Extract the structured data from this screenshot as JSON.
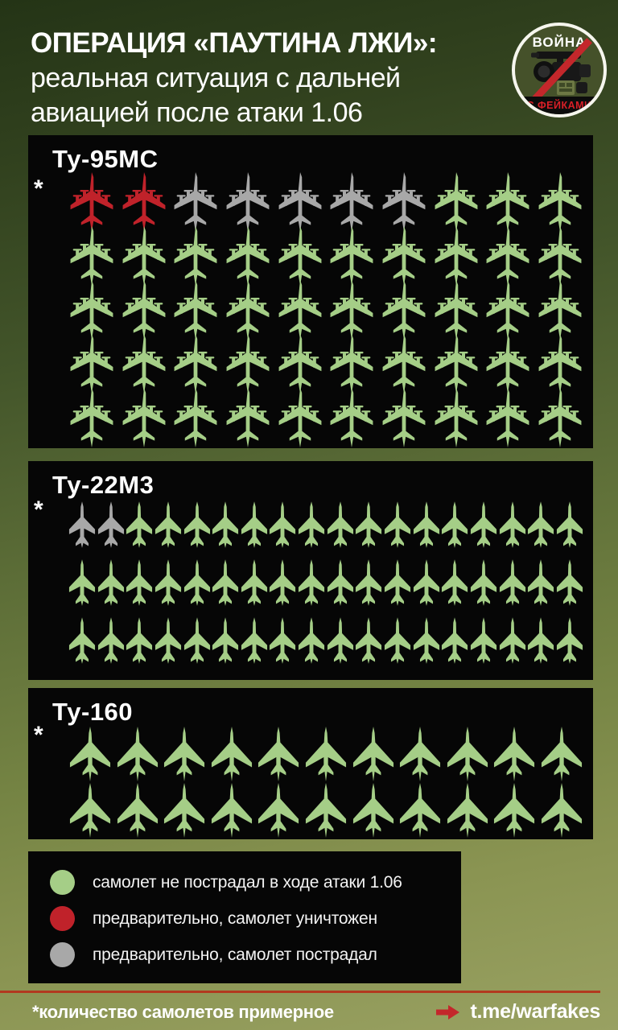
{
  "header": {
    "title_line1": "ОПЕРАЦИЯ «ПАУТИНА ЛЖИ»:",
    "title_line2": "реальная ситуация с дальней",
    "title_line3": "авиацией после атаки 1.06",
    "logo": {
      "top": "ВОЙНА",
      "bottom": "С ФЕЙКАМИ",
      "icon": "video-camera-crossed-icon"
    }
  },
  "panels": {
    "asterisk": "*"
  },
  "colors": {
    "ok": "#a5ce87",
    "destroyed": "#c0222a",
    "damaged": "#a8a8a8",
    "accent_red": "#c3272b",
    "divider_red": "#b2391f",
    "panel_black": "#060606"
  },
  "chart_data": [
    {
      "type": "pictogram",
      "title": "Ту-95МС",
      "icon": "tu95-bomber-icon",
      "per_row": 10,
      "rows": 5,
      "total": 50,
      "sequence": [
        [
          "destroyed",
          2
        ],
        [
          "damaged",
          5
        ],
        [
          "ok",
          43
        ]
      ],
      "counts": {
        "destroyed": 2,
        "damaged": 5,
        "ok": 43
      }
    },
    {
      "type": "pictogram",
      "title": "Ту-22М3",
      "icon": "tu22m3-bomber-icon",
      "per_row": 18,
      "rows": 3,
      "total": 54,
      "sequence": [
        [
          "damaged",
          2
        ],
        [
          "ok",
          52
        ]
      ],
      "counts": {
        "destroyed": 0,
        "damaged": 2,
        "ok": 52
      }
    },
    {
      "type": "pictogram",
      "title": "Ту-160",
      "icon": "tu160-bomber-icon",
      "per_row": 11,
      "rows": 2,
      "total": 22,
      "sequence": [
        [
          "ok",
          22
        ]
      ],
      "counts": {
        "destroyed": 0,
        "damaged": 0,
        "ok": 22
      }
    }
  ],
  "legend": {
    "items": [
      {
        "status": "ok",
        "color": "#a5ce87",
        "label": "самолет не пострадал в ходе атаки 1.06"
      },
      {
        "status": "destroyed",
        "color": "#c0222a",
        "label": "предварительно, самолет уничтожен"
      },
      {
        "status": "damaged",
        "color": "#a8a8a8",
        "label": "предварительно, самолет пострадал"
      }
    ]
  },
  "footer": {
    "note": "*количество самолетов примерное",
    "link": "t.me/warfakes"
  }
}
